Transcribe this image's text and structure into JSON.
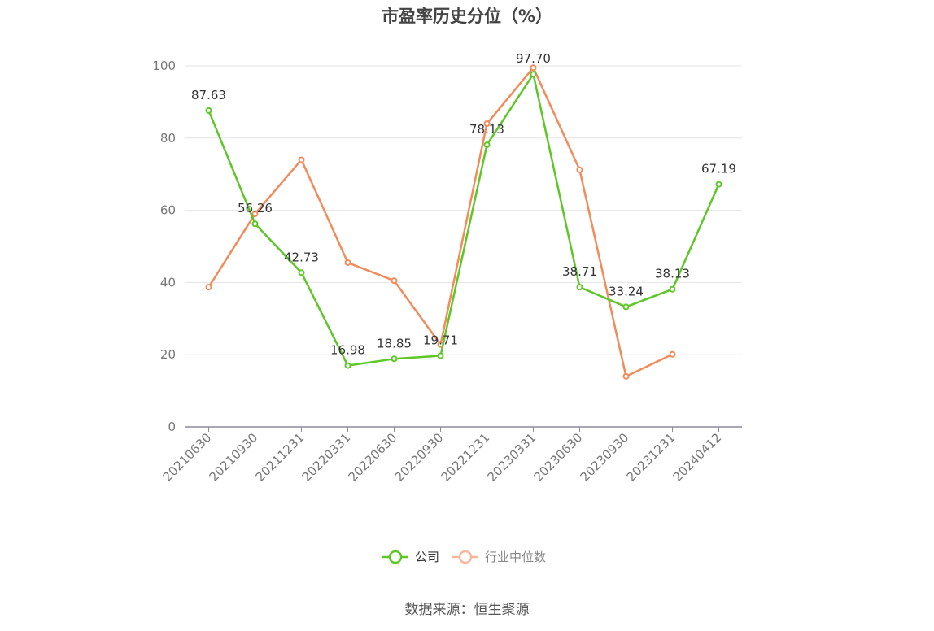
{
  "title": "市盈率历史分位（%）",
  "source": "数据来源：恒生聚源",
  "chart_data": {
    "type": "line",
    "title": "市盈率历史分位（%）",
    "categories": [
      "20210630",
      "20210930",
      "20211231",
      "20220331",
      "20220630",
      "20220930",
      "20221231",
      "20230331",
      "20230630",
      "20230930",
      "20231231",
      "20240412"
    ],
    "series": [
      {
        "name": "公司",
        "color": "#5cc727",
        "values": [
          87.63,
          56.26,
          42.73,
          16.98,
          18.85,
          19.71,
          78.13,
          97.7,
          38.71,
          33.24,
          38.13,
          67.19
        ],
        "labels": [
          "87.63",
          "56.26",
          "42.73",
          "16.98",
          "18.85",
          "19.71",
          "78.13",
          "97.70",
          "38.71",
          "33.24",
          "38.13",
          "67.19"
        ]
      },
      {
        "name": "行业中位数",
        "color": "#f28b5a",
        "values": [
          38.7,
          59.0,
          74.0,
          45.5,
          40.5,
          22.8,
          84.0,
          99.5,
          71.2,
          14.0,
          20.1,
          null
        ]
      }
    ],
    "ylim": [
      0,
      100
    ],
    "yticks": [
      "0",
      "20",
      "40",
      "60",
      "80",
      "100"
    ],
    "grid": true,
    "legend_position": "bottom-center"
  }
}
